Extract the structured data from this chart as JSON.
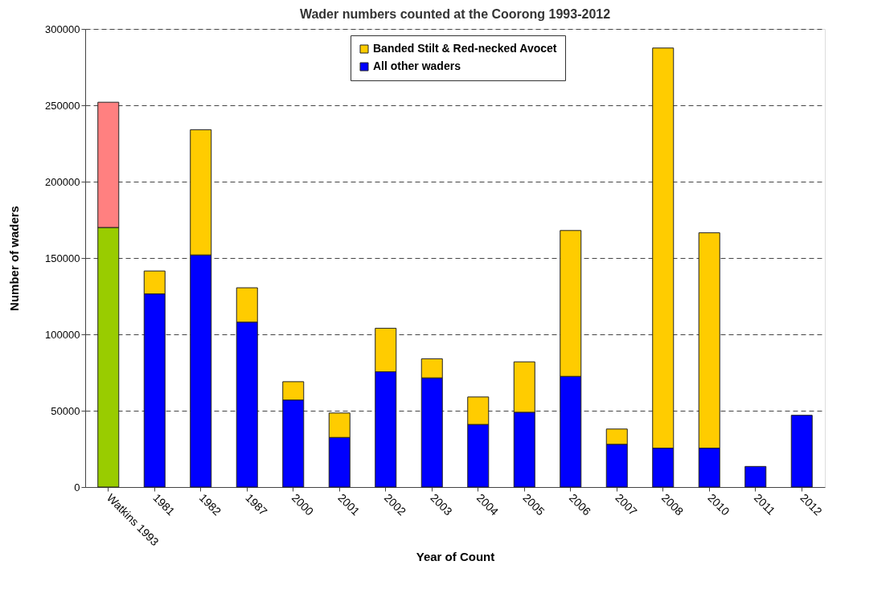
{
  "chart_data": {
    "type": "bar",
    "stacked": true,
    "title": "Wader numbers counted at the Coorong 1993-2012",
    "xlabel": "Year of Count",
    "ylabel": "Number of waders",
    "categories": [
      "Watkins 1993",
      "1981",
      "1982",
      "1987",
      "2000",
      "2001",
      "2002",
      "2003",
      "2004",
      "2005",
      "2006",
      "2007",
      "2008",
      "2010",
      "2011",
      "2012"
    ],
    "series": [
      {
        "name": "All other waders",
        "color": "#0000ff",
        "colors": [
          "#99cc00",
          "#0000ff",
          "#0000ff",
          "#0000ff",
          "#0000ff",
          "#0000ff",
          "#0000ff",
          "#0000ff",
          "#0000ff",
          "#0000ff",
          "#0000ff",
          "#0000ff",
          "#0000ff",
          "#0000ff",
          "#0000ff",
          "#0000ff"
        ],
        "values": [
          170000,
          126500,
          152000,
          108000,
          57000,
          32500,
          75500,
          71500,
          41000,
          49000,
          72500,
          28000,
          25500,
          25500,
          13500,
          47000
        ]
      },
      {
        "name": "Banded Stilt & Red-necked Avocet",
        "color": "#ffcc00",
        "colors": [
          "#ff8080",
          "#ffcc00",
          "#ffcc00",
          "#ffcc00",
          "#ffcc00",
          "#ffcc00",
          "#ffcc00",
          "#ffcc00",
          "#ffcc00",
          "#ffcc00",
          "#ffcc00",
          "#ffcc00",
          "#ffcc00",
          "#ffcc00",
          "#ffcc00",
          "#ffcc00"
        ],
        "values": [
          82000,
          15000,
          82000,
          22500,
          12000,
          16000,
          28500,
          12500,
          18000,
          33000,
          95500,
          10000,
          262000,
          141000,
          null,
          null
        ]
      }
    ],
    "ylim": [
      0,
      300000
    ],
    "yticks": [
      0,
      50000,
      100000,
      150000,
      200000,
      250000,
      300000
    ],
    "grid": "y",
    "legend": "top right"
  }
}
